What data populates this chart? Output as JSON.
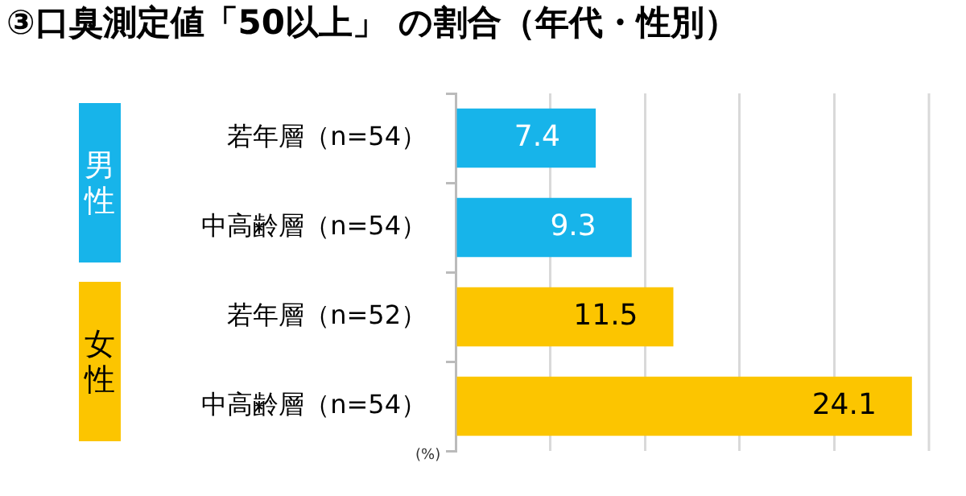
{
  "chart_data": {
    "type": "bar",
    "orientation": "horizontal",
    "title": "③口臭測定値「50以上」 の割合（年代・性別）",
    "categories": [
      "若年層（n=54）",
      "中高齢層（n=54）",
      "若年層（n=52）",
      "中高齢層（n=54）"
    ],
    "values": [
      7.4,
      9.3,
      11.5,
      24.1
    ],
    "colors": [
      "#17b4ea",
      "#17b4ea",
      "#fcc500",
      "#fcc500"
    ],
    "xlim": [
      0,
      25
    ],
    "xticks": [
      {
        "value": 0,
        "label": null
      },
      {
        "value": 5,
        "label": null
      },
      {
        "value": 10,
        "label": null
      },
      {
        "value": 15,
        "label": null
      },
      {
        "value": 20,
        "label": null
      }
    ],
    "tick_labels": "y",
    "grid": "x",
    "legend": false,
    "data_labels": true,
    "annotations": [
      "男性",
      "女性",
      "(%)"
    ]
  }
}
